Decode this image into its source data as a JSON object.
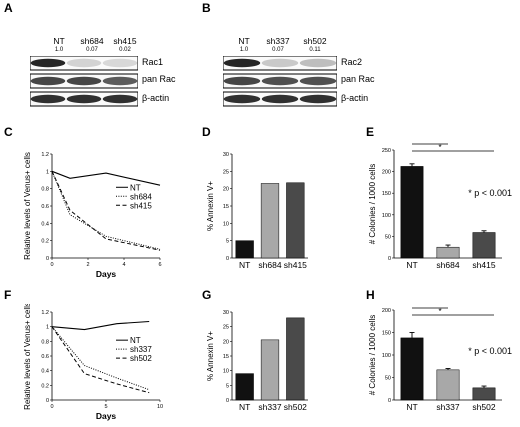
{
  "panels": {
    "A": {
      "letter": "A",
      "lanes": [
        "NT",
        "sh684",
        "sh415"
      ],
      "quant": [
        "1.0",
        "0.07",
        "0.02"
      ],
      "rows": [
        "Rac1",
        "pan Rac",
        "β-actin"
      ],
      "band_intensity": [
        [
          1.0,
          0.2,
          0.18
        ],
        [
          0.85,
          0.85,
          0.75
        ],
        [
          0.95,
          0.95,
          0.95
        ]
      ]
    },
    "B": {
      "letter": "B",
      "lanes": [
        "NT",
        "sh337",
        "sh502"
      ],
      "quant": [
        "1.0",
        "0.07",
        "0.11"
      ],
      "rows": [
        "Rac2",
        "pan Rac",
        "β-actin"
      ],
      "band_intensity": [
        [
          1.0,
          0.25,
          0.3
        ],
        [
          0.85,
          0.8,
          0.8
        ],
        [
          0.95,
          0.95,
          0.95
        ]
      ]
    },
    "C": {
      "letter": "C"
    },
    "D": {
      "letter": "D"
    },
    "E": {
      "letter": "E",
      "annotation": "* p < 0.001",
      "sig": [
        "*",
        "*"
      ]
    },
    "F": {
      "letter": "F"
    },
    "G": {
      "letter": "G"
    },
    "H": {
      "letter": "H",
      "annotation": "* p < 0.001",
      "sig": [
        "*",
        "*"
      ]
    }
  },
  "chart_data": [
    {
      "id": "C",
      "type": "line",
      "xlabel": "Days",
      "ylabel": "Relative levels of Venus+ cells",
      "xlim": [
        0,
        6
      ],
      "ylim": [
        0,
        1.2
      ],
      "xticks": [
        0,
        2,
        4,
        6
      ],
      "yticks": [
        "0",
        "0.2",
        "0.4",
        "0.6",
        "0.8",
        "1",
        "1.2"
      ],
      "legend_position": "right",
      "series": [
        {
          "name": "NT",
          "style": "solid",
          "points": [
            [
              0,
              1.0
            ],
            [
              1,
              0.92
            ],
            [
              3,
              0.98
            ],
            [
              6,
              0.84
            ]
          ]
        },
        {
          "name": "sh684",
          "style": "dotted",
          "points": [
            [
              0,
              1.0
            ],
            [
              1,
              0.5
            ],
            [
              3,
              0.25
            ],
            [
              6,
              0.1
            ]
          ]
        },
        {
          "name": "sh415",
          "style": "dashed",
          "points": [
            [
              0,
              1.0
            ],
            [
              1,
              0.55
            ],
            [
              3,
              0.22
            ],
            [
              6,
              0.09
            ]
          ]
        }
      ]
    },
    {
      "id": "D",
      "type": "bar",
      "ylabel": "% Annexin V+",
      "ylim": [
        0,
        30
      ],
      "yticks": [
        "0",
        "5",
        "10",
        "15",
        "20",
        "25",
        "30"
      ],
      "categories": [
        "NT",
        "sh684",
        "sh415"
      ],
      "values": [
        5,
        21.5,
        21.7
      ],
      "colors": [
        "#111111",
        "#a8a8a8",
        "#4a4a4a"
      ]
    },
    {
      "id": "E",
      "type": "bar",
      "ylabel": "# Colonies / 1000 cells",
      "ylim": [
        0,
        250
      ],
      "yticks": [
        "0",
        "50",
        "100",
        "150",
        "200",
        "250"
      ],
      "categories": [
        "NT",
        "sh684",
        "sh415"
      ],
      "values": [
        212,
        25,
        59
      ],
      "errors": [
        6,
        5,
        4
      ],
      "colors": [
        "#111111",
        "#a8a8a8",
        "#4a4a4a"
      ]
    },
    {
      "id": "F",
      "type": "line",
      "xlabel": "Days",
      "ylabel": "Relative levels of Venus+ cells",
      "xlim": [
        0,
        10
      ],
      "ylim": [
        0,
        1.2
      ],
      "xticks": [
        0,
        5,
        10
      ],
      "yticks": [
        "0",
        "0.2",
        "0.4",
        "0.6",
        "0.8",
        "1",
        "1.2"
      ],
      "legend_position": "right",
      "series": [
        {
          "name": "NT",
          "style": "solid",
          "points": [
            [
              0,
              1.0
            ],
            [
              3,
              0.96
            ],
            [
              6,
              1.04
            ],
            [
              9,
              1.07
            ]
          ]
        },
        {
          "name": "sh337",
          "style": "dotted",
          "points": [
            [
              0,
              1.0
            ],
            [
              3,
              0.47
            ],
            [
              6,
              0.3
            ],
            [
              9,
              0.14
            ]
          ]
        },
        {
          "name": "sh502",
          "style": "dashed",
          "points": [
            [
              0,
              1.0
            ],
            [
              3,
              0.36
            ],
            [
              6,
              0.22
            ],
            [
              9,
              0.1
            ]
          ]
        }
      ]
    },
    {
      "id": "G",
      "type": "bar",
      "ylabel": "% Annexin V+",
      "ylim": [
        0,
        30
      ],
      "yticks": [
        "0",
        "5",
        "10",
        "15",
        "20",
        "25",
        "30"
      ],
      "categories": [
        "NT",
        "sh337",
        "sh502"
      ],
      "values": [
        9,
        20.5,
        28
      ],
      "colors": [
        "#111111",
        "#a8a8a8",
        "#4a4a4a"
      ]
    },
    {
      "id": "H",
      "type": "bar",
      "ylabel": "# Colonies / 1000 cells",
      "ylim": [
        0,
        200
      ],
      "yticks": [
        "0",
        "50",
        "100",
        "150",
        "200"
      ],
      "categories": [
        "NT",
        "sh337",
        "sh502"
      ],
      "values": [
        138,
        67,
        27
      ],
      "errors": [
        12,
        3,
        4
      ],
      "colors": [
        "#111111",
        "#a8a8a8",
        "#4a4a4a"
      ]
    }
  ]
}
